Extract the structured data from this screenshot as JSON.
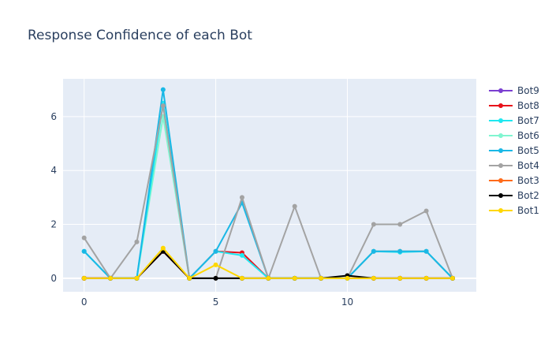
{
  "chart_data": {
    "type": "line",
    "title": "Response Confidence of each Bot",
    "xlabel": "",
    "ylabel": "",
    "xlim": [
      -0.8,
      14.9
    ],
    "ylim": [
      -0.5,
      7.4
    ],
    "x_ticks": [
      0,
      5,
      10
    ],
    "y_ticks": [
      0,
      2,
      4,
      6
    ],
    "grid": true,
    "legend_placement": "top-right",
    "plot_bg": "#e5ecf6",
    "x": [
      0,
      1,
      2,
      3,
      4,
      5,
      6,
      7,
      8,
      9,
      10,
      11,
      12,
      13,
      14
    ],
    "series": [
      {
        "name": "Bot1",
        "color": "#ffd700",
        "values": [
          0,
          0,
          0,
          1.12,
          0,
          0.5,
          0,
          0,
          0,
          0,
          0,
          0,
          0,
          0,
          0
        ]
      },
      {
        "name": "Bot2",
        "color": "#000000",
        "values": [
          0,
          0,
          0,
          1.0,
          0,
          0,
          0,
          0,
          0,
          0,
          0.1,
          0,
          0,
          0,
          0
        ]
      },
      {
        "name": "Bot3",
        "color": "#ff6b1a",
        "values": [
          0,
          0,
          0,
          1.0,
          0,
          0,
          0,
          0,
          0,
          0,
          0,
          0,
          0,
          0,
          0
        ]
      },
      {
        "name": "Bot4",
        "color": "#a3a3a3",
        "values": [
          1.5,
          0,
          1.35,
          6.4,
          0,
          0,
          3.0,
          0,
          2.67,
          0,
          0,
          2.0,
          2.0,
          2.5,
          0
        ]
      },
      {
        "name": "Bot5",
        "color": "#1ab8e6",
        "values": [
          1.0,
          0,
          0,
          7.0,
          0,
          1.0,
          2.8,
          0,
          0,
          0,
          0,
          1.0,
          1.0,
          1.0,
          0
        ]
      },
      {
        "name": "Bot6",
        "color": "#80f5d0",
        "values": [
          1.0,
          0,
          0,
          6.0,
          0,
          0,
          0,
          0,
          0,
          0,
          0,
          1.0,
          1.0,
          1.0,
          0
        ]
      },
      {
        "name": "Bot7",
        "color": "#1fe8f0",
        "values": [
          1.0,
          0,
          0,
          6.5,
          0,
          1.0,
          0.85,
          0,
          0,
          0,
          0,
          1.0,
          0.97,
          1.0,
          0
        ]
      },
      {
        "name": "Bot8",
        "color": "#e8101a",
        "values": [
          0,
          0,
          0,
          1.0,
          0,
          1.0,
          0.95,
          0,
          0,
          0,
          0,
          1.0,
          1.0,
          1.0,
          0
        ]
      },
      {
        "name": "Bot9",
        "color": "#7b3fd1",
        "values": [
          0,
          0,
          0,
          1.0,
          0,
          0,
          0,
          0,
          0,
          0,
          0,
          0,
          0,
          0,
          0
        ]
      }
    ],
    "draw_order": [
      "Bot9",
      "Bot8",
      "Bot3",
      "Bot6",
      "Bot7",
      "Bot5",
      "Bot4",
      "Bot2",
      "Bot1"
    ],
    "legend_order": [
      "Bot9",
      "Bot8",
      "Bot7",
      "Bot6",
      "Bot5",
      "Bot4",
      "Bot3",
      "Bot2",
      "Bot1"
    ]
  }
}
